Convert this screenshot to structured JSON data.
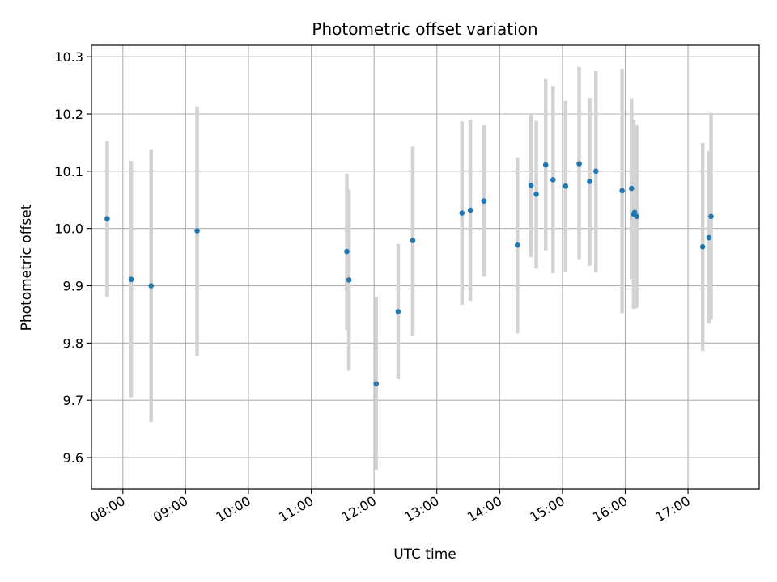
{
  "chart_data": {
    "type": "scatter",
    "title": "Photometric offset variation",
    "xlabel": "UTC time",
    "ylabel": "Photometric offset",
    "x_axis_kind": "time",
    "xlim": [
      "07:30",
      "18:08"
    ],
    "ylim": [
      9.545,
      10.32
    ],
    "grid": true,
    "xticks": [
      "08:00",
      "09:00",
      "10:00",
      "11:00",
      "12:00",
      "13:00",
      "14:00",
      "15:00",
      "16:00",
      "17:00"
    ],
    "yticks": [
      9.6,
      9.7,
      9.8,
      9.9,
      10.0,
      10.1,
      10.2,
      10.3
    ],
    "ytick_labels": [
      "9.6",
      "9.7",
      "9.8",
      "9.9",
      "10.0",
      "10.1",
      "10.2",
      "10.3"
    ],
    "colors": {
      "point": "#1f77b4",
      "errorbar": "#d3d3d3",
      "grid": "#b0b0b0"
    },
    "points": [
      {
        "time": "07:45",
        "y": 10.017,
        "low": 9.88,
        "high": 10.152
      },
      {
        "time": "08:08",
        "y": 9.911,
        "low": 9.705,
        "high": 10.118
      },
      {
        "time": "08:27",
        "y": 9.9,
        "low": 9.662,
        "high": 10.138
      },
      {
        "time": "09:11",
        "y": 9.996,
        "low": 9.777,
        "high": 10.213
      },
      {
        "time": "11:34",
        "y": 9.96,
        "low": 9.823,
        "high": 10.096
      },
      {
        "time": "11:36",
        "y": 9.91,
        "low": 9.752,
        "high": 10.068
      },
      {
        "time": "12:02",
        "y": 9.729,
        "low": 9.578,
        "high": 9.88
      },
      {
        "time": "12:23",
        "y": 9.855,
        "low": 9.737,
        "high": 9.973
      },
      {
        "time": "12:37",
        "y": 9.979,
        "low": 9.812,
        "high": 10.143
      },
      {
        "time": "13:24",
        "y": 10.027,
        "low": 9.867,
        "high": 10.187
      },
      {
        "time": "13:32",
        "y": 10.032,
        "low": 9.874,
        "high": 10.19
      },
      {
        "time": "13:45",
        "y": 10.048,
        "low": 9.916,
        "high": 10.18
      },
      {
        "time": "14:17",
        "y": 9.971,
        "low": 9.817,
        "high": 10.124
      },
      {
        "time": "14:30",
        "y": 10.075,
        "low": 9.95,
        "high": 10.2
      },
      {
        "time": "14:35",
        "y": 10.06,
        "low": 9.93,
        "high": 10.188
      },
      {
        "time": "14:44",
        "y": 10.111,
        "low": 9.962,
        "high": 10.261
      },
      {
        "time": "14:51",
        "y": 10.085,
        "low": 9.922,
        "high": 10.248
      },
      {
        "time": "15:03",
        "y": 10.074,
        "low": 9.925,
        "high": 10.223
      },
      {
        "time": "15:16",
        "y": 10.113,
        "low": 9.945,
        "high": 10.282
      },
      {
        "time": "15:26",
        "y": 10.082,
        "low": 9.935,
        "high": 10.228
      },
      {
        "time": "15:32",
        "y": 10.1,
        "low": 9.924,
        "high": 10.275
      },
      {
        "time": "15:57",
        "y": 10.066,
        "low": 9.852,
        "high": 10.279
      },
      {
        "time": "16:06",
        "y": 10.07,
        "low": 9.912,
        "high": 10.227
      },
      {
        "time": "16:08",
        "y": 10.025,
        "low": 9.86,
        "high": 10.19
      },
      {
        "time": "16:09",
        "y": 10.028,
        "low": 9.86,
        "high": 10.18
      },
      {
        "time": "16:11",
        "y": 10.021,
        "low": 9.862,
        "high": 10.18
      },
      {
        "time": "17:14",
        "y": 9.968,
        "low": 9.786,
        "high": 10.149
      },
      {
        "time": "17:20",
        "y": 9.984,
        "low": 9.834,
        "high": 10.135
      },
      {
        "time": "17:22",
        "y": 10.021,
        "low": 9.841,
        "high": 10.202
      }
    ]
  }
}
